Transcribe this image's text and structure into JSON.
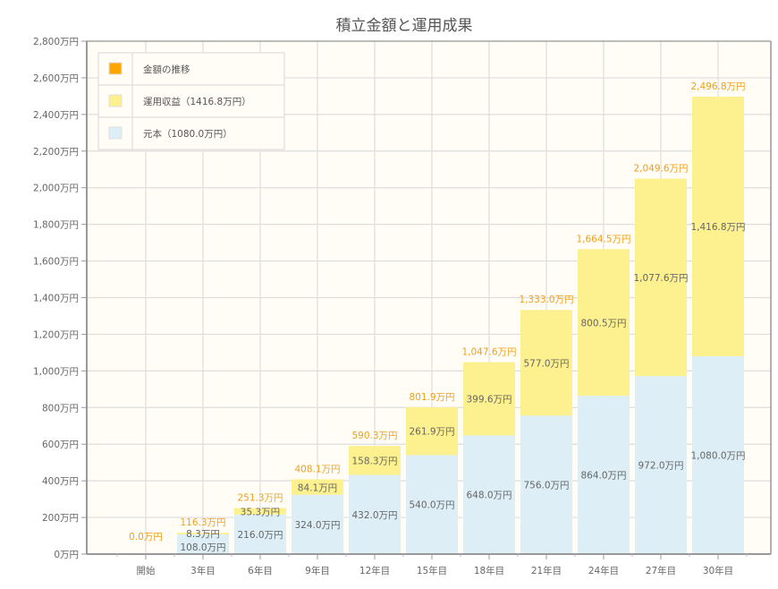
{
  "chart_data": {
    "type": "bar",
    "stacked": true,
    "title": "積立金額と運用成果",
    "xlabel": "",
    "ylabel": "",
    "unit_suffix": "万円",
    "ylim": [
      0,
      2800
    ],
    "ytick_step": 200,
    "yticks": [
      "0万円",
      "200万円",
      "400万円",
      "600万円",
      "800万円",
      "1,000万円",
      "1,200万円",
      "1,400万円",
      "1,600万円",
      "1,800万円",
      "2,000万円",
      "2,200万円",
      "2,400万円",
      "2,600万円",
      "2,800万円"
    ],
    "grid": true,
    "categories": [
      "開始",
      "3年目",
      "6年目",
      "9年目",
      "12年目",
      "15年目",
      "18年目",
      "21年目",
      "24年目",
      "27年目",
      "30年目"
    ],
    "series": [
      {
        "name": "元本",
        "legend_label": "元本（1080.0万円）",
        "color": "#ddeef6",
        "values": [
          0.0,
          108.0,
          216.0,
          324.0,
          432.0,
          540.0,
          648.0,
          756.0,
          864.0,
          972.0,
          1080.0
        ],
        "labels": [
          "",
          "108.0万円",
          "216.0万円",
          "324.0万円",
          "432.0万円",
          "540.0万円",
          "648.0万円",
          "756.0万円",
          "864.0万円",
          "972.0万円",
          "1,080.0万円"
        ]
      },
      {
        "name": "運用収益",
        "legend_label": "運用収益（1416.8万円）",
        "color": "#fdf08e",
        "values": [
          0.0,
          8.3,
          35.3,
          84.1,
          158.3,
          261.9,
          399.6,
          577.0,
          800.5,
          1077.6,
          1416.8
        ],
        "labels": [
          "",
          "8.3万円",
          "35.3万円",
          "84.1万円",
          "158.3万円",
          "261.9万円",
          "399.6万円",
          "577.0万円",
          "800.5万円",
          "1,077.6万円",
          "1,416.8万円"
        ]
      }
    ],
    "totals": {
      "name": "金額の推移",
      "legend_label": "金額の推移",
      "color": "#ffa500",
      "values": [
        0.0,
        116.3,
        251.3,
        408.1,
        590.3,
        801.9,
        1047.6,
        1333.0,
        1664.5,
        2049.6,
        2496.8
      ],
      "labels": [
        "0.0万円",
        "116.3万円",
        "251.3万円",
        "408.1万円",
        "590.3万円",
        "801.9万円",
        "1,047.6万円",
        "1,333.0万円",
        "1,664.5万円",
        "2,049.6万円",
        "2,496.8万円"
      ],
      "label_color": "#f0a01e"
    },
    "legend_position": "top-left",
    "plot_background": "#fffdf5",
    "grid_color": "#dddddd",
    "axis_color": "#999999"
  }
}
